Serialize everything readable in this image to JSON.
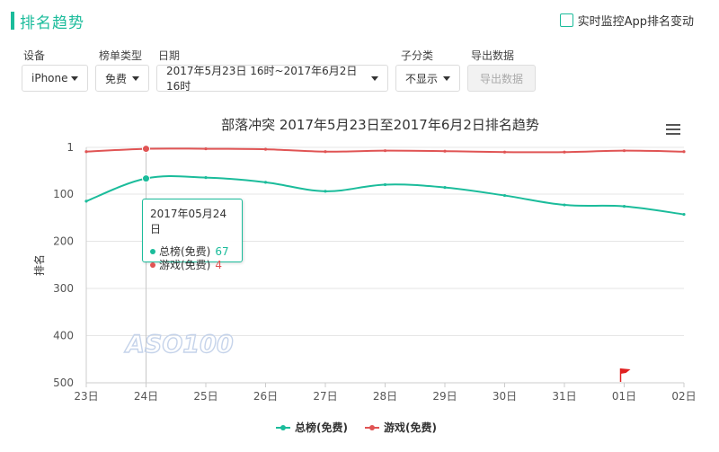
{
  "header": {
    "title": "排名趋势"
  },
  "monitor": {
    "label": "实时监控App排名变动",
    "checked": false
  },
  "filters": {
    "device": {
      "label": "设备",
      "value": "iPhone"
    },
    "chart_type": {
      "label": "榜单类型",
      "value": "免费"
    },
    "date": {
      "label": "日期",
      "value": "2017年5月23日 16时~2017年6月2日 16时"
    },
    "subcategory": {
      "label": "子分类",
      "value": "不显示"
    },
    "export": {
      "label": "导出数据",
      "button": "导出数据"
    }
  },
  "colors": {
    "accent": "#1bbc9b",
    "series_total": "#1bbc9b",
    "series_game": "#e05454",
    "marker": "#e02020"
  },
  "watermark": "ASO100",
  "tooltip": {
    "date": "2017年05月24日",
    "rows": [
      {
        "name": "总榜(免费)",
        "value": "67"
      },
      {
        "name": "游戏(免费)",
        "value": "4"
      }
    ]
  },
  "chart_data": {
    "type": "line",
    "title": "部落冲突 2017年5月23日至2017年6月2日排名趋势",
    "ylabel": "排名",
    "xlabel": "",
    "y_inverted": true,
    "ylim": [
      1,
      500
    ],
    "yticks": [
      1,
      100,
      200,
      300,
      400,
      500
    ],
    "categories": [
      "23日",
      "24日",
      "25日",
      "26日",
      "27日",
      "28日",
      "29日",
      "30日",
      "31日",
      "01日",
      "02日"
    ],
    "grid": true,
    "legend_position": "bottom",
    "series": [
      {
        "name": "总榜(免费)",
        "color": "#1bbc9b",
        "values": [
          115,
          67,
          65,
          75,
          94,
          80,
          86,
          103,
          123,
          126,
          143
        ]
      },
      {
        "name": "游戏(免费)",
        "color": "#e05454",
        "values": [
          10,
          4,
          4,
          5,
          10,
          8,
          9,
          11,
          11,
          8,
          10
        ]
      }
    ],
    "highlight_index": 1,
    "flag_category": "01日"
  }
}
